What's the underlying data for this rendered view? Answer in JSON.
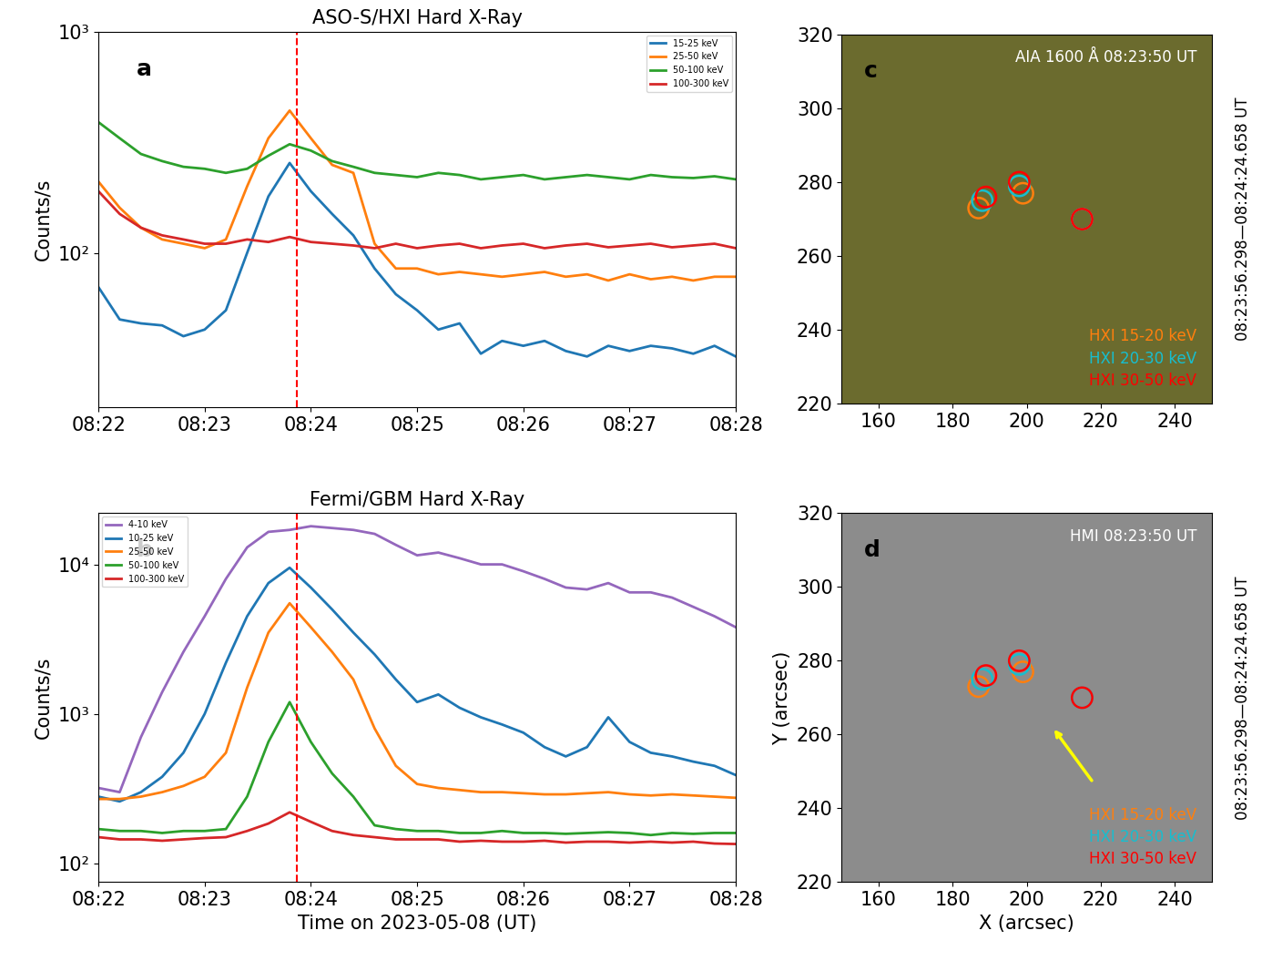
{
  "chart_data": [
    {
      "type": "line",
      "panel": "a",
      "title": "ASO-S/HXI Hard X-Ray",
      "y_label": "Counts/s",
      "log": "y",
      "legend": "upper right",
      "grid": false,
      "peak_time": 23.87,
      "x": [
        22.0,
        22.2,
        22.4,
        22.6,
        22.8,
        23.0,
        23.2,
        23.4,
        23.6,
        23.8,
        24.0,
        24.2,
        24.4,
        24.6,
        24.8,
        25.0,
        25.2,
        25.4,
        25.6,
        25.8,
        26.0,
        26.2,
        26.4,
        26.6,
        26.8,
        27.0,
        27.2,
        27.4,
        27.6,
        27.8,
        28.0
      ],
      "xlim": [
        22,
        28
      ],
      "xticks": [
        {
          "value": 22,
          "label": "08:22"
        },
        {
          "value": 23,
          "label": "08:23"
        },
        {
          "value": 24,
          "label": "08:24"
        },
        {
          "value": 25,
          "label": "08:25"
        },
        {
          "value": 26,
          "label": "08:26"
        },
        {
          "value": 27,
          "label": "08:27"
        },
        {
          "value": 28,
          "label": "08:28"
        }
      ],
      "ylim": [
        20,
        1000
      ],
      "yticks": [
        {
          "value": 100,
          "label": "10²"
        },
        {
          "value": 1000,
          "label": "10³"
        }
      ],
      "series": [
        {
          "name": "15-25 keV",
          "color": "#1f77b4",
          "values": [
            70,
            50,
            48,
            47,
            42,
            45,
            55,
            100,
            180,
            255,
            190,
            150,
            120,
            85,
            65,
            55,
            45,
            48,
            35,
            40,
            38,
            40,
            36,
            34,
            38,
            36,
            38,
            37,
            35,
            38,
            34
          ]
        },
        {
          "name": "25-50 keV",
          "color": "#ff7f0e",
          "values": [
            210,
            160,
            130,
            115,
            110,
            105,
            115,
            200,
            330,
            440,
            330,
            250,
            230,
            110,
            85,
            85,
            80,
            82,
            80,
            78,
            80,
            82,
            78,
            80,
            75,
            80,
            76,
            78,
            75,
            78,
            78
          ]
        },
        {
          "name": "50-100 keV",
          "color": "#2ca02c",
          "values": [
            390,
            330,
            280,
            260,
            245,
            240,
            230,
            240,
            275,
            310,
            290,
            260,
            245,
            230,
            225,
            220,
            230,
            225,
            215,
            220,
            225,
            215,
            220,
            225,
            220,
            215,
            225,
            220,
            218,
            222,
            215
          ]
        },
        {
          "name": "100-300 keV",
          "color": "#d62728",
          "values": [
            190,
            150,
            130,
            120,
            115,
            110,
            110,
            115,
            112,
            118,
            112,
            110,
            108,
            105,
            110,
            105,
            108,
            110,
            105,
            108,
            110,
            105,
            108,
            110,
            106,
            108,
            110,
            106,
            108,
            110,
            105
          ]
        }
      ]
    },
    {
      "type": "line",
      "panel": "b",
      "title": "Fermi/GBM Hard X-Ray",
      "y_label": "Counts/s",
      "x_label": "Time on 2023-05-08 (UT)",
      "log": "y",
      "legend": "upper left",
      "grid": false,
      "peak_time": 23.87,
      "x": [
        22.0,
        22.2,
        22.4,
        22.6,
        22.8,
        23.0,
        23.2,
        23.4,
        23.6,
        23.8,
        24.0,
        24.2,
        24.4,
        24.6,
        24.8,
        25.0,
        25.2,
        25.4,
        25.6,
        25.8,
        26.0,
        26.2,
        26.4,
        26.6,
        26.8,
        27.0,
        27.2,
        27.4,
        27.6,
        27.8,
        28.0
      ],
      "xlim": [
        22,
        28
      ],
      "xticks": [
        {
          "value": 22,
          "label": "08:22"
        },
        {
          "value": 23,
          "label": "08:23"
        },
        {
          "value": 24,
          "label": "08:24"
        },
        {
          "value": 25,
          "label": "08:25"
        },
        {
          "value": 26,
          "label": "08:26"
        },
        {
          "value": 27,
          "label": "08:27"
        },
        {
          "value": 28,
          "label": "08:28"
        }
      ],
      "ylim": [
        75,
        22000
      ],
      "yticks": [
        {
          "value": 100,
          "label": "10²"
        },
        {
          "value": 1000,
          "label": "10³"
        },
        {
          "value": 10000,
          "label": "10⁴"
        }
      ],
      "series": [
        {
          "name": "4-10 keV",
          "color": "#9467bd",
          "values": [
            320,
            300,
            700,
            1400,
            2600,
            4500,
            8000,
            13000,
            16500,
            17000,
            18000,
            17500,
            17000,
            16000,
            13500,
            11500,
            12000,
            11000,
            10000,
            10000,
            9000,
            8000,
            7000,
            6800,
            7500,
            6500,
            6500,
            6000,
            5200,
            4500,
            3800
          ]
        },
        {
          "name": "10-25 keV",
          "color": "#1f77b4",
          "values": [
            280,
            260,
            300,
            380,
            550,
            1000,
            2200,
            4500,
            7500,
            9500,
            7000,
            5000,
            3500,
            2500,
            1700,
            1200,
            1350,
            1100,
            950,
            850,
            750,
            600,
            520,
            600,
            950,
            650,
            550,
            520,
            480,
            450,
            390
          ]
        },
        {
          "name": "25-50 keV",
          "color": "#ff7f0e",
          "values": [
            270,
            270,
            280,
            300,
            330,
            380,
            550,
            1500,
            3500,
            5500,
            3800,
            2600,
            1700,
            800,
            450,
            340,
            320,
            310,
            300,
            300,
            295,
            290,
            290,
            295,
            300,
            290,
            285,
            290,
            285,
            280,
            275
          ]
        },
        {
          "name": "50-100 keV",
          "color": "#2ca02c",
          "values": [
            170,
            165,
            165,
            160,
            165,
            165,
            170,
            280,
            650,
            1200,
            650,
            400,
            280,
            180,
            170,
            165,
            165,
            160,
            160,
            165,
            160,
            160,
            158,
            160,
            162,
            160,
            155,
            160,
            158,
            160,
            160
          ]
        },
        {
          "name": "100-300 keV",
          "color": "#d62728",
          "values": [
            150,
            145,
            145,
            142,
            145,
            148,
            150,
            165,
            185,
            220,
            190,
            165,
            155,
            150,
            145,
            145,
            145,
            140,
            142,
            140,
            140,
            142,
            138,
            140,
            140,
            138,
            140,
            138,
            140,
            136,
            135
          ]
        }
      ]
    },
    {
      "type": "scatter",
      "panel": "c",
      "title": "AIA 1600 Å 08:23:50 UT",
      "side_label": "08:23:56.298—08:24:24.658 UT",
      "color": "#6b6b2e",
      "grid": false,
      "xlim": [
        150,
        250
      ],
      "xticks": [
        160,
        180,
        200,
        220,
        240
      ],
      "ylim": [
        220,
        320
      ],
      "yticks": [
        220,
        240,
        260,
        280,
        300,
        320
      ],
      "series": [
        {
          "name": "HXI 15-20 keV",
          "color": "#ff7f0e",
          "marker": "o",
          "x": [
            187,
            199
          ],
          "y": [
            273,
            277
          ]
        },
        {
          "name": "HXI 20-30 keV",
          "color": "#17becf",
          "marker": "o",
          "x": [
            188,
            198,
            215
          ],
          "y": [
            275,
            279,
            270
          ]
        },
        {
          "name": "HXI 30-50 keV",
          "color": "#ff0000",
          "marker": "o",
          "x": [
            189,
            198,
            215
          ],
          "y": [
            276,
            280,
            270
          ]
        }
      ]
    },
    {
      "type": "scatter",
      "panel": "d",
      "title": "HMI 08:23:50 UT",
      "side_label": "08:23:56.298—08:24:24.658 UT",
      "x_label": "X (arcsec)",
      "y_label": "Y (arcsec)",
      "color": "#8c8c8c",
      "grid": false,
      "xlim": [
        150,
        250
      ],
      "xticks": [
        160,
        180,
        200,
        220,
        240
      ],
      "ylim": [
        220,
        320
      ],
      "yticks": [
        220,
        240,
        260,
        280,
        300,
        320
      ],
      "series": [
        {
          "name": "HXI 15-20 keV",
          "color": "#ff7f0e",
          "marker": "o",
          "x": [
            187,
            199
          ],
          "y": [
            273,
            277
          ]
        },
        {
          "name": "HXI 20-30 keV",
          "color": "#17becf",
          "marker": "o",
          "x": [
            188,
            198,
            215
          ],
          "y": [
            275,
            279,
            270
          ]
        },
        {
          "name": "HXI 30-50 keV",
          "color": "#ff0000",
          "marker": "o",
          "x": [
            189,
            198,
            215
          ],
          "y": [
            276,
            280,
            270
          ]
        }
      ]
    }
  ]
}
